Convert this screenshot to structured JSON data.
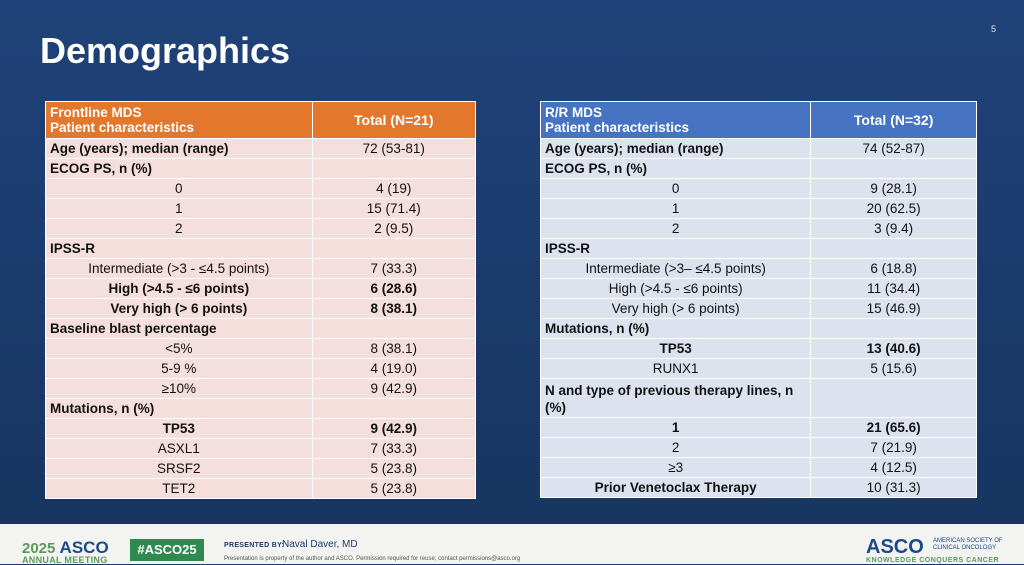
{
  "slide": {
    "title": "Demographics",
    "number": "5"
  },
  "left_table": {
    "header": [
      "Frontline MDS",
      "Patient characteristics"
    ],
    "total_header": "Total (N=21)",
    "rows": [
      {
        "label": "Age (years); median (range)",
        "value": "72 (53-81)",
        "style": "bold"
      },
      {
        "label": "ECOG PS, n (%)",
        "value": "",
        "style": "bold"
      },
      {
        "label": "0",
        "value": "4 (19)",
        "style": "center"
      },
      {
        "label": "1",
        "value": "15 (71.4)",
        "style": "center"
      },
      {
        "label": "2",
        "value": "2 (9.5)",
        "style": "center"
      },
      {
        "label": "IPSS-R",
        "value": "",
        "style": "bold"
      },
      {
        "label": "Intermediate (>3 - ≤4.5 points)",
        "value": "7 (33.3)",
        "style": "center"
      },
      {
        "label": "High (>4.5 - ≤6 points)",
        "value": "6 (28.6)",
        "style": "center-bold"
      },
      {
        "label": "Very high (> 6 points)",
        "value": "8 (38.1)",
        "style": "center-bold"
      },
      {
        "label": "Baseline blast percentage",
        "value": "",
        "style": "bold"
      },
      {
        "label": "<5%",
        "value": "8 (38.1)",
        "style": "center"
      },
      {
        "label": "5-9 %",
        "value": "4 (19.0)",
        "style": "center"
      },
      {
        "label": "≥10%",
        "value": "9 (42.9)",
        "style": "center"
      },
      {
        "label": "Mutations, n (%)",
        "value": "",
        "style": "bold"
      },
      {
        "label": "TP53",
        "value": "9 (42.9)",
        "style": "center-bold"
      },
      {
        "label": "ASXL1",
        "value": "7 (33.3)",
        "style": "center"
      },
      {
        "label": "SRSF2",
        "value": "5 (23.8)",
        "style": "center"
      },
      {
        "label": "TET2",
        "value": "5 (23.8)",
        "style": "center"
      }
    ]
  },
  "right_table": {
    "header": [
      "R/R MDS",
      "Patient characteristics"
    ],
    "total_header": "Total (N=32)",
    "rows": [
      {
        "label": "Age (years); median (range)",
        "value": "74 (52-87)",
        "style": "bold"
      },
      {
        "label": "ECOG PS, n (%)",
        "value": "",
        "style": "bold"
      },
      {
        "label": "0",
        "value": "9 (28.1)",
        "style": "center"
      },
      {
        "label": "1",
        "value": "20 (62.5)",
        "style": "center"
      },
      {
        "label": "2",
        "value": "3 (9.4)",
        "style": "center"
      },
      {
        "label": "IPSS-R",
        "value": "",
        "style": "bold"
      },
      {
        "label": "Intermediate (>3– ≤4.5 points)",
        "value": "6 (18.8)",
        "style": "center"
      },
      {
        "label": "High (>4.5 - ≤6 points)",
        "value": "11 (34.4)",
        "style": "center"
      },
      {
        "label": "Very high (> 6 points)",
        "value": "15 (46.9)",
        "style": "center"
      },
      {
        "label": "Mutations,  n (%)",
        "value": "",
        "style": "bold"
      },
      {
        "label": "TP53",
        "value": "13 (40.6)",
        "style": "center-bold"
      },
      {
        "label": "RUNX1",
        "value": "5 (15.6)",
        "style": "center"
      },
      {
        "label": "N and type of previous therapy lines, n (%)",
        "value": "",
        "style": "bold-tall"
      },
      {
        "label": "1",
        "value": "21 (65.6)",
        "style": "center-bold"
      },
      {
        "label": "2",
        "value": "7 (21.9)",
        "style": "center"
      },
      {
        "label": "≥3",
        "value": "4 (12.5)",
        "style": "center"
      },
      {
        "label": "Prior Venetoclax Therapy",
        "value": "10 (31.3)",
        "style": "center-bold-label"
      }
    ]
  },
  "footer": {
    "year": "2025",
    "asco": "ASCO",
    "annual_meeting": "ANNUAL MEETING",
    "hashtag": "#ASCO25",
    "presented_by": "PRESENTED BY:",
    "presenter": "Naval Daver, MD",
    "disclaimer": "Presentation is property of the author and ASCO. Permission required for reuse; contact permissions@asco.org",
    "logo": "ASCO",
    "logo_sub": "AMERICAN SOCIETY OF CLINICAL ONCOLOGY",
    "tagline": "KNOWLEDGE CONQUERS CANCER"
  }
}
